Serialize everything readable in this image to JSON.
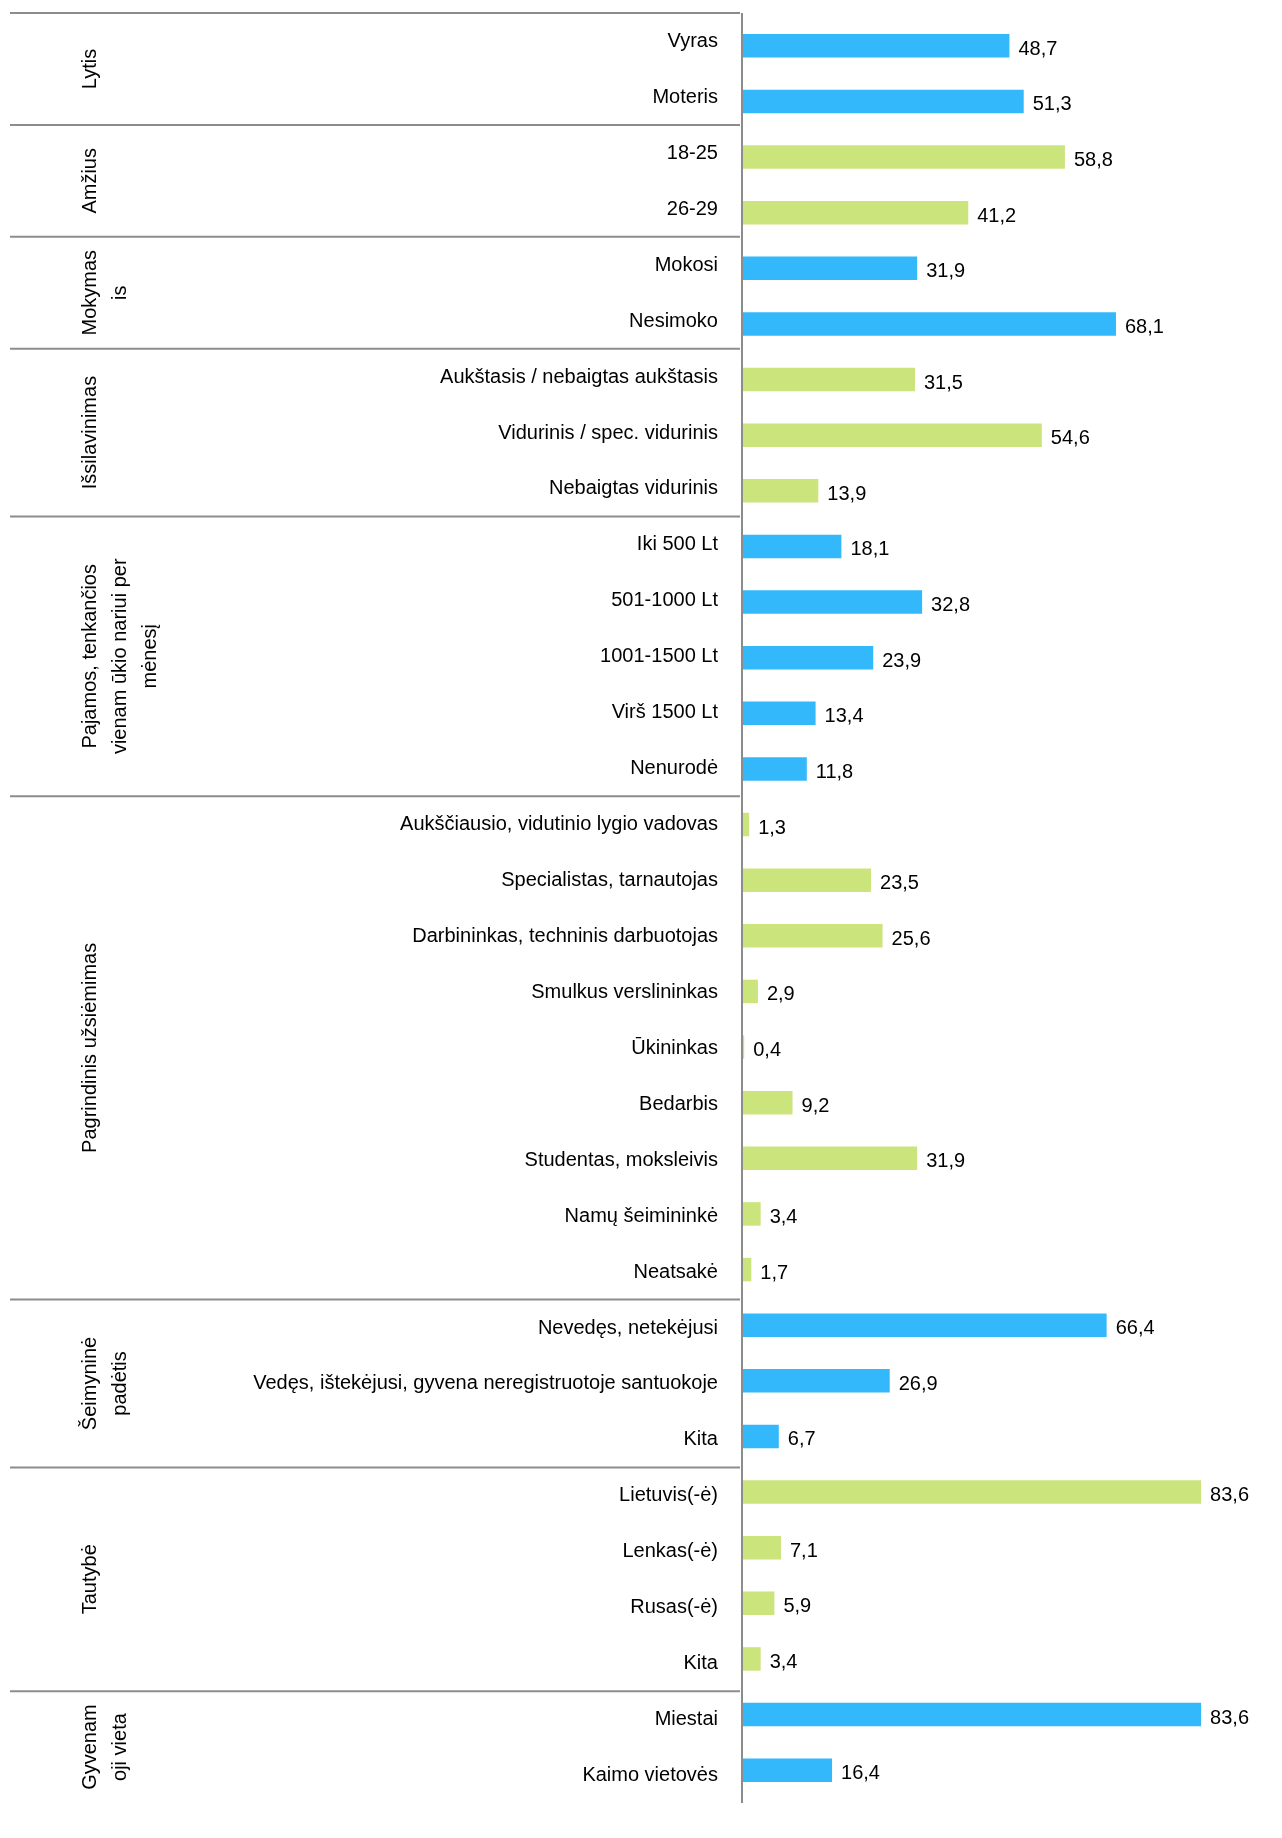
{
  "chart_data": {
    "type": "bar",
    "orientation": "horizontal",
    "categories": [
      "Vyras",
      "Moteris",
      "18-25",
      "26-29",
      "Mokosi",
      "Nesimoko",
      "Aukštasis / nebaigtas aukštasis",
      "Vidurinis / spec. vidurinis",
      "Nebaigtas vidurinis",
      "Iki 500 Lt",
      "501-1000 Lt",
      "1001-1500 Lt",
      "Virš 1500 Lt",
      "Nenurodė",
      "Aukščiausio, vidutinio lygio vadovas",
      "Specialistas, tarnautojas",
      "Darbininkas, techninis darbuotojas",
      "Smulkus verslininkas",
      "Ūkininkas",
      "Bedarbis",
      "Studentas, moksleivis",
      "Namų šeimininkė",
      "Neatsakė",
      "Nevedęs, netekėjusi",
      "Vedęs, ištekėjusi, gyvena neregistruotoje santuokoje",
      "Kita",
      "Lietuvis(-ė)",
      "Lenkas(-ė)",
      "Rusas(-ė)",
      "Kita",
      "Miestai",
      "Kaimo vietovės"
    ],
    "values": [
      48.7,
      51.3,
      58.8,
      41.2,
      31.9,
      68.1,
      31.5,
      54.6,
      13.9,
      18.1,
      32.8,
      23.9,
      13.4,
      11.8,
      1.3,
      23.5,
      25.6,
      2.9,
      0.4,
      9.2,
      31.9,
      3.4,
      1.7,
      66.4,
      26.9,
      6.7,
      83.6,
      7.1,
      5.9,
      3.4,
      83.6,
      16.4
    ],
    "value_labels": [
      "48,7",
      "51,3",
      "58,8",
      "41,2",
      "31,9",
      "68,1",
      "31,5",
      "54,6",
      "13,9",
      "18,1",
      "32,8",
      "23,9",
      "13,4",
      "11,8",
      "1,3",
      "23,5",
      "25,6",
      "2,9",
      "0,4",
      "9,2",
      "31,9",
      "3,4",
      "1,7",
      "66,4",
      "26,9",
      "6,7",
      "83,6",
      "7,1",
      "5,9",
      "3,4",
      "83,6",
      "16,4"
    ],
    "colors": [
      "#33b8fc",
      "#33b8fc",
      "#cce47c",
      "#cce47c",
      "#33b8fc",
      "#33b8fc",
      "#cce47c",
      "#cce47c",
      "#cce47c",
      "#33b8fc",
      "#33b8fc",
      "#33b8fc",
      "#33b8fc",
      "#33b8fc",
      "#cce47c",
      "#cce47c",
      "#cce47c",
      "#cce47c",
      "#cce47c",
      "#cce47c",
      "#cce47c",
      "#cce47c",
      "#cce47c",
      "#33b8fc",
      "#33b8fc",
      "#33b8fc",
      "#cce47c",
      "#cce47c",
      "#cce47c",
      "#cce47c",
      "#33b8fc",
      "#33b8fc"
    ],
    "annotations": [
      "Lytis",
      "Amžius",
      "Mokymas\nis",
      "Išsilavinimas",
      "Pajamos, tenkančios\nvienam ūkio nariui per\nmėnesį",
      "Pagrindinis užsiėmimas",
      "Šeimyninė\npadėtis",
      "Tautybė",
      "Gyvenam\noji vieta"
    ]
  }
}
